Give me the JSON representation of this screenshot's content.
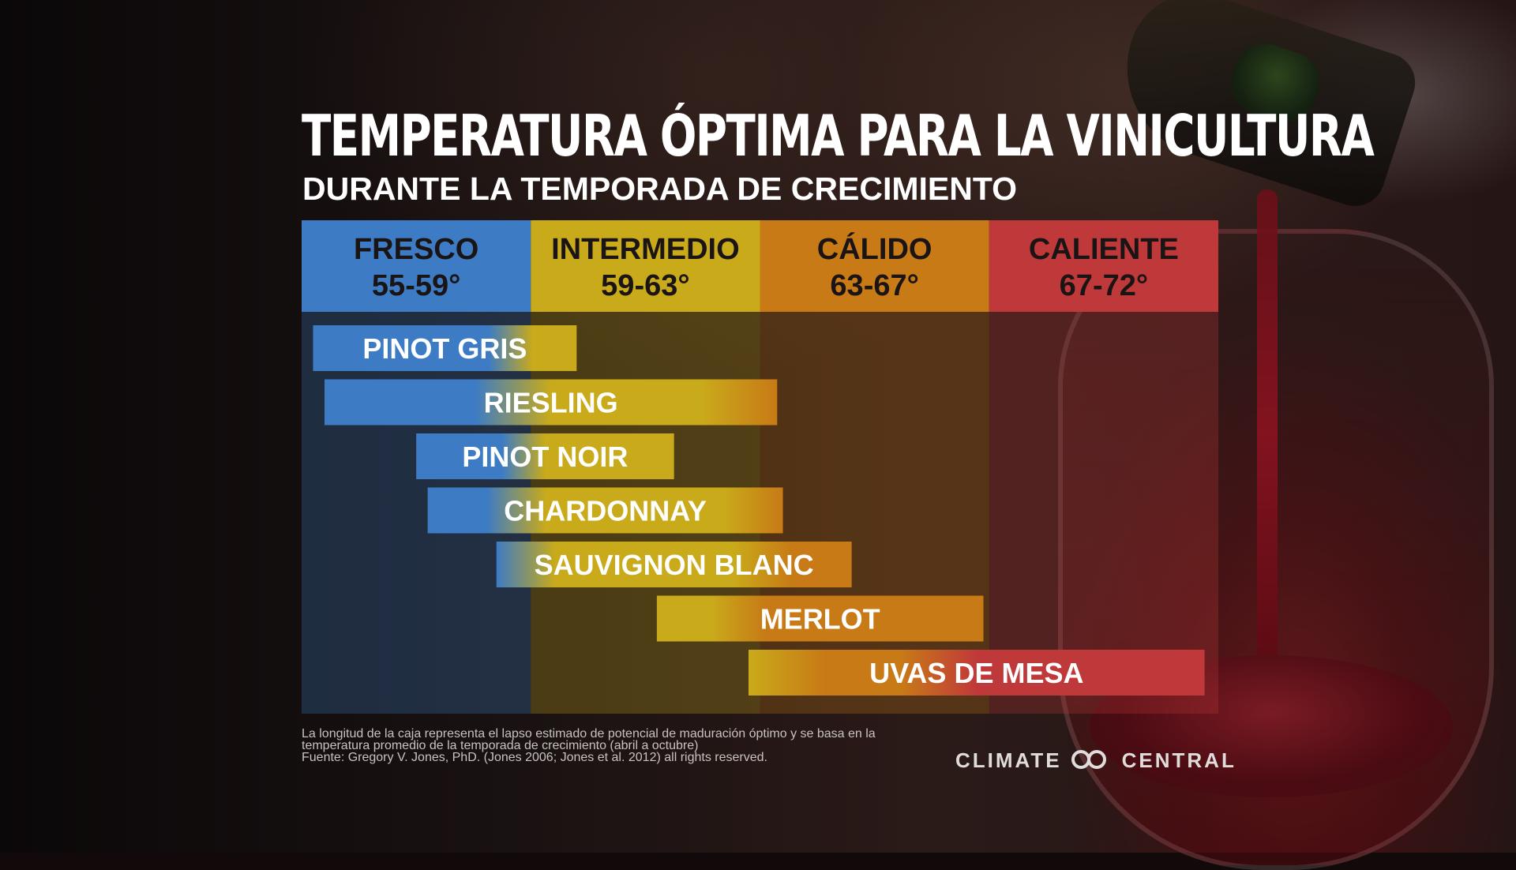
{
  "title": "TEMPERATURA ÓPTIMA PARA LA VINICULTURA",
  "subtitle": "DURANTE LA TEMPORADA DE CRECIMIENTO",
  "colors": {
    "fresco": "#3d7cc4",
    "intermedio": "#c9aa1a",
    "calido": "#c87a16",
    "caliente": "#c0393a"
  },
  "chart_data": {
    "type": "bar",
    "orientation": "horizontal-range",
    "x_unit": "°F",
    "xlim": [
      55,
      72
    ],
    "zones": [
      {
        "name": "FRESCO",
        "range_label": "55-59°",
        "from": 55,
        "to": 59,
        "color": "#3d7cc4"
      },
      {
        "name": "INTERMEDIO",
        "range_label": "59-63°",
        "from": 59,
        "to": 63,
        "color": "#c9aa1a"
      },
      {
        "name": "CÁLIDO",
        "range_label": "63-67°",
        "from": 63,
        "to": 67,
        "color": "#c87a16"
      },
      {
        "name": "CALIENTE",
        "range_label": "67-72°",
        "from": 67,
        "to": 72,
        "color": "#c0393a"
      }
    ],
    "bars": [
      {
        "label": "PINOT GRIS",
        "start": 55.2,
        "end": 59.8
      },
      {
        "label": "RIESLING",
        "start": 55.4,
        "end": 63.3
      },
      {
        "label": "PINOT NOIR",
        "start": 57.0,
        "end": 61.5
      },
      {
        "label": "CHARDONNAY",
        "start": 57.2,
        "end": 63.4
      },
      {
        "label": "SAUVIGNON BLANC",
        "start": 58.4,
        "end": 64.6
      },
      {
        "label": "MERLOT",
        "start": 61.2,
        "end": 66.9
      },
      {
        "label": "UVAS DE MESA",
        "start": 62.8,
        "end": 71.7
      }
    ]
  },
  "footnote": {
    "line1": "La longitud de la caja representa el lapso estimado de potencial de maduración óptimo y se basa en la",
    "line2": "temperatura promedio de la temporada de crecimiento (abril a octubre)",
    "line3": "Fuente: Gregory V. Jones, PhD. (Jones 2006; Jones et al. 2012) all rights reserved."
  },
  "logo": {
    "left": "CLIMATE",
    "right": "CENTRAL",
    "icon": "climate-central-rings-icon"
  }
}
